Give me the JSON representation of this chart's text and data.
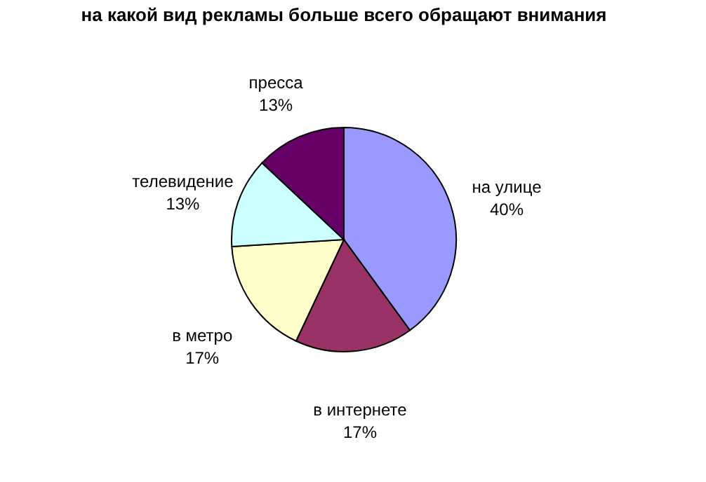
{
  "chart_data": {
    "type": "pie",
    "title": "на какой вид рекламы больше всего обращают внимания",
    "categories": [
      "на улице",
      "в интернете",
      "в метро",
      "телевидение",
      "пресса"
    ],
    "values": [
      40,
      17,
      17,
      13,
      13
    ],
    "value_labels": [
      "40%",
      "17%",
      "17%",
      "13%",
      "13%"
    ],
    "colors": [
      "#9999ff",
      "#993366",
      "#ffffcc",
      "#ccffff",
      "#660066"
    ],
    "legend": false
  }
}
